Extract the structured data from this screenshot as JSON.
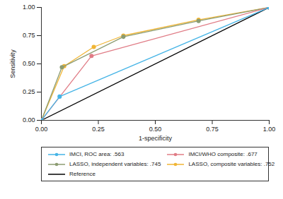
{
  "chart_data": {
    "type": "line",
    "x_label": "1-specificity",
    "y_label": "Sensitivity",
    "xlim": [
      0,
      1
    ],
    "ylim": [
      0,
      1
    ],
    "xticks": [
      {
        "value": 0,
        "label": "0.00"
      },
      {
        "value": 0.25,
        "label": "0.25"
      },
      {
        "value": 0.5,
        "label": "0.50"
      },
      {
        "value": 0.75,
        "label": "0.75"
      },
      {
        "value": 1,
        "label": "1.00"
      }
    ],
    "yticks": [
      {
        "value": 0,
        "label": "0.00"
      },
      {
        "value": 0.25,
        "label": "0.25"
      },
      {
        "value": 0.5,
        "label": "0.50"
      },
      {
        "value": 0.75,
        "label": "0.75"
      },
      {
        "value": 1,
        "label": "1.00"
      }
    ],
    "grid": false,
    "legend": "bottom",
    "series": [
      {
        "name": "IMCI, ROC area: .563",
        "color": "#45b4e6",
        "marker": "circle",
        "x": [
          0,
          0.08,
          1
        ],
        "values": [
          0,
          0.21,
          1
        ]
      },
      {
        "name": "IMCI/WHO composite: .677",
        "color": "#e07c86",
        "marker": "circle",
        "x": [
          0,
          0.22,
          1
        ],
        "values": [
          0,
          0.57,
          1
        ]
      },
      {
        "name": "LASSO, independent variables: .745",
        "color": "#8c9c72",
        "marker": "circle",
        "x": [
          0,
          0.09,
          0.36,
          0.69,
          1
        ],
        "values": [
          0,
          0.47,
          0.74,
          0.88,
          1
        ]
      },
      {
        "name": "LASSO, composite variables: .752",
        "color": "#f0b535",
        "marker": "circle",
        "x": [
          0,
          0.1,
          0.23,
          0.36,
          0.69,
          1
        ],
        "values": [
          0,
          0.48,
          0.65,
          0.75,
          0.89,
          1
        ]
      },
      {
        "name": "Reference",
        "color": "#000000",
        "x": [
          0,
          1
        ],
        "values": [
          0,
          1
        ]
      }
    ]
  }
}
